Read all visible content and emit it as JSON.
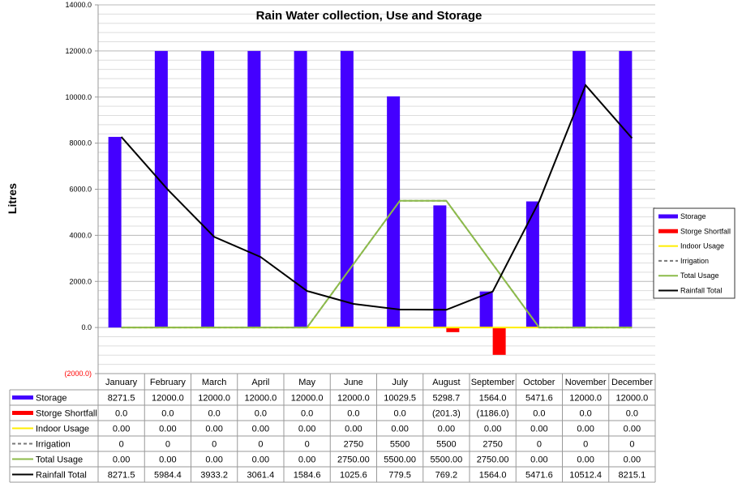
{
  "chart_data": {
    "type": "bar",
    "title": "Rain Water collection, Use and Storage",
    "ylabel": "Litres",
    "xlabel": "",
    "ylim": [
      -2000,
      14000
    ],
    "yticks": [
      -2000,
      0,
      2000,
      4000,
      6000,
      8000,
      10000,
      12000,
      14000
    ],
    "ytick_labels": [
      "(2000.0)",
      "0.0",
      "2000.0",
      "4000.0",
      "6000.0",
      "8000.0",
      "10000.0",
      "12000.0",
      "14000.0"
    ],
    "grid": true,
    "legend_position": "right",
    "categories": [
      "January",
      "February",
      "March",
      "April",
      "May",
      "June",
      "July",
      "August",
      "September",
      "October",
      "November",
      "December"
    ],
    "series": [
      {
        "name": "Storage",
        "kind": "bar",
        "color": "#4400ff",
        "values": [
          8271.5,
          12000.0,
          12000.0,
          12000.0,
          12000.0,
          12000.0,
          10029.5,
          5298.7,
          1564.0,
          5471.6,
          12000.0,
          12000.0
        ],
        "labels": [
          "8271.5",
          "12000.0",
          "12000.0",
          "12000.0",
          "12000.0",
          "12000.0",
          "10029.5",
          "5298.7",
          "1564.0",
          "5471.6",
          "12000.0",
          "12000.0"
        ]
      },
      {
        "name": "Storge Shortfall",
        "kind": "bar",
        "color": "#ff0000",
        "values": [
          0,
          0,
          0,
          0,
          0,
          0,
          0,
          -201.3,
          -1186.0,
          0,
          0,
          0
        ],
        "labels": [
          "0.0",
          "0.0",
          "0.0",
          "0.0",
          "0.0",
          "0.0",
          "0.0",
          "(201.3)",
          "(1186.0)",
          "0.0",
          "0.0",
          "0.0"
        ]
      },
      {
        "name": "Indoor Usage",
        "kind": "line",
        "color": "#ffee00",
        "dash": false,
        "values": [
          0,
          0,
          0,
          0,
          0,
          0,
          0,
          0,
          0,
          0,
          0,
          0
        ],
        "labels": [
          "0.00",
          "0.00",
          "0.00",
          "0.00",
          "0.00",
          "0.00",
          "0.00",
          "0.00",
          "0.00",
          "0.00",
          "0.00",
          "0.00"
        ]
      },
      {
        "name": "Irrigation",
        "kind": "line",
        "color": "#777777",
        "dash": true,
        "values": [
          0,
          0,
          0,
          0,
          0,
          2750,
          5500,
          5500,
          2750,
          0,
          0,
          0
        ],
        "labels": [
          "0",
          "0",
          "0",
          "0",
          "0",
          "2750",
          "5500",
          "5500",
          "2750",
          "0",
          "0",
          "0"
        ]
      },
      {
        "name": "Total Usage",
        "kind": "line",
        "color": "#8cbb4a",
        "dash": false,
        "values": [
          0,
          0,
          0,
          0,
          0,
          2750,
          5500,
          5500,
          2750,
          0,
          0,
          0
        ],
        "labels": [
          "0.00",
          "0.00",
          "0.00",
          "0.00",
          "0.00",
          "2750.00",
          "5500.00",
          "5500.00",
          "2750.00",
          "0.00",
          "0.00",
          "0.00"
        ]
      },
      {
        "name": "Rainfall Total",
        "kind": "line",
        "color": "#000000",
        "dash": false,
        "values": [
          8271.5,
          5984.4,
          3933.2,
          3061.4,
          1584.6,
          1025.6,
          779.5,
          769.2,
          1564.0,
          5471.6,
          10512.4,
          8215.1
        ],
        "labels": [
          "8271.5",
          "5984.4",
          "3933.2",
          "3061.4",
          "1584.6",
          "1025.6",
          "779.5",
          "769.2",
          "1564.0",
          "5471.6",
          "10512.4",
          "8215.1"
        ]
      }
    ]
  }
}
